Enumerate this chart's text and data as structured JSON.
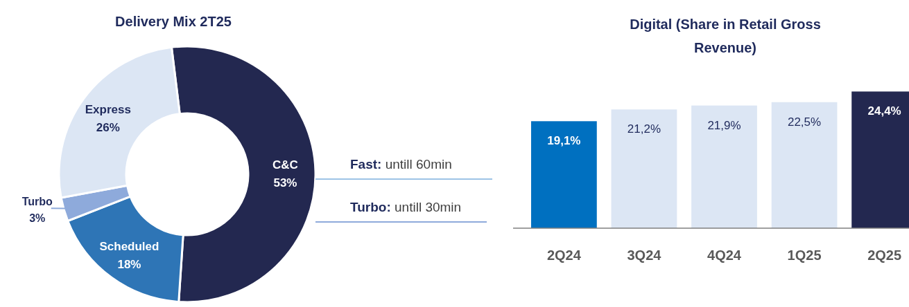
{
  "chart_data": [
    {
      "type": "donut",
      "title": "Delivery Mix 2T25",
      "categories": [
        "C&C",
        "Scheduled",
        "Turbo",
        "Express"
      ],
      "values": [
        53,
        18,
        3,
        26
      ],
      "colors": [
        "#232850",
        "#2e75b6",
        "#8eaadb",
        "#dce6f4"
      ],
      "value_labels": [
        "53%",
        "18%",
        "3%",
        "26%"
      ],
      "annotations": [
        "Fast: untill 60min",
        "Turbo: untill 30min"
      ]
    },
    {
      "type": "bar",
      "title": "Digital (Share in Retail Gross Revenue)",
      "categories": [
        "2Q24",
        "3Q24",
        "4Q24",
        "1Q25",
        "2Q25"
      ],
      "values": [
        19.1,
        21.2,
        21.9,
        22.5,
        24.4
      ],
      "colors": [
        "#0070c0",
        "#dce6f4",
        "#dce6f4",
        "#dce6f4",
        "#232850"
      ],
      "value_labels": [
        "19,1%",
        "21,2%",
        "21,9%",
        "22,5%",
        "24,4%"
      ]
    }
  ]
}
